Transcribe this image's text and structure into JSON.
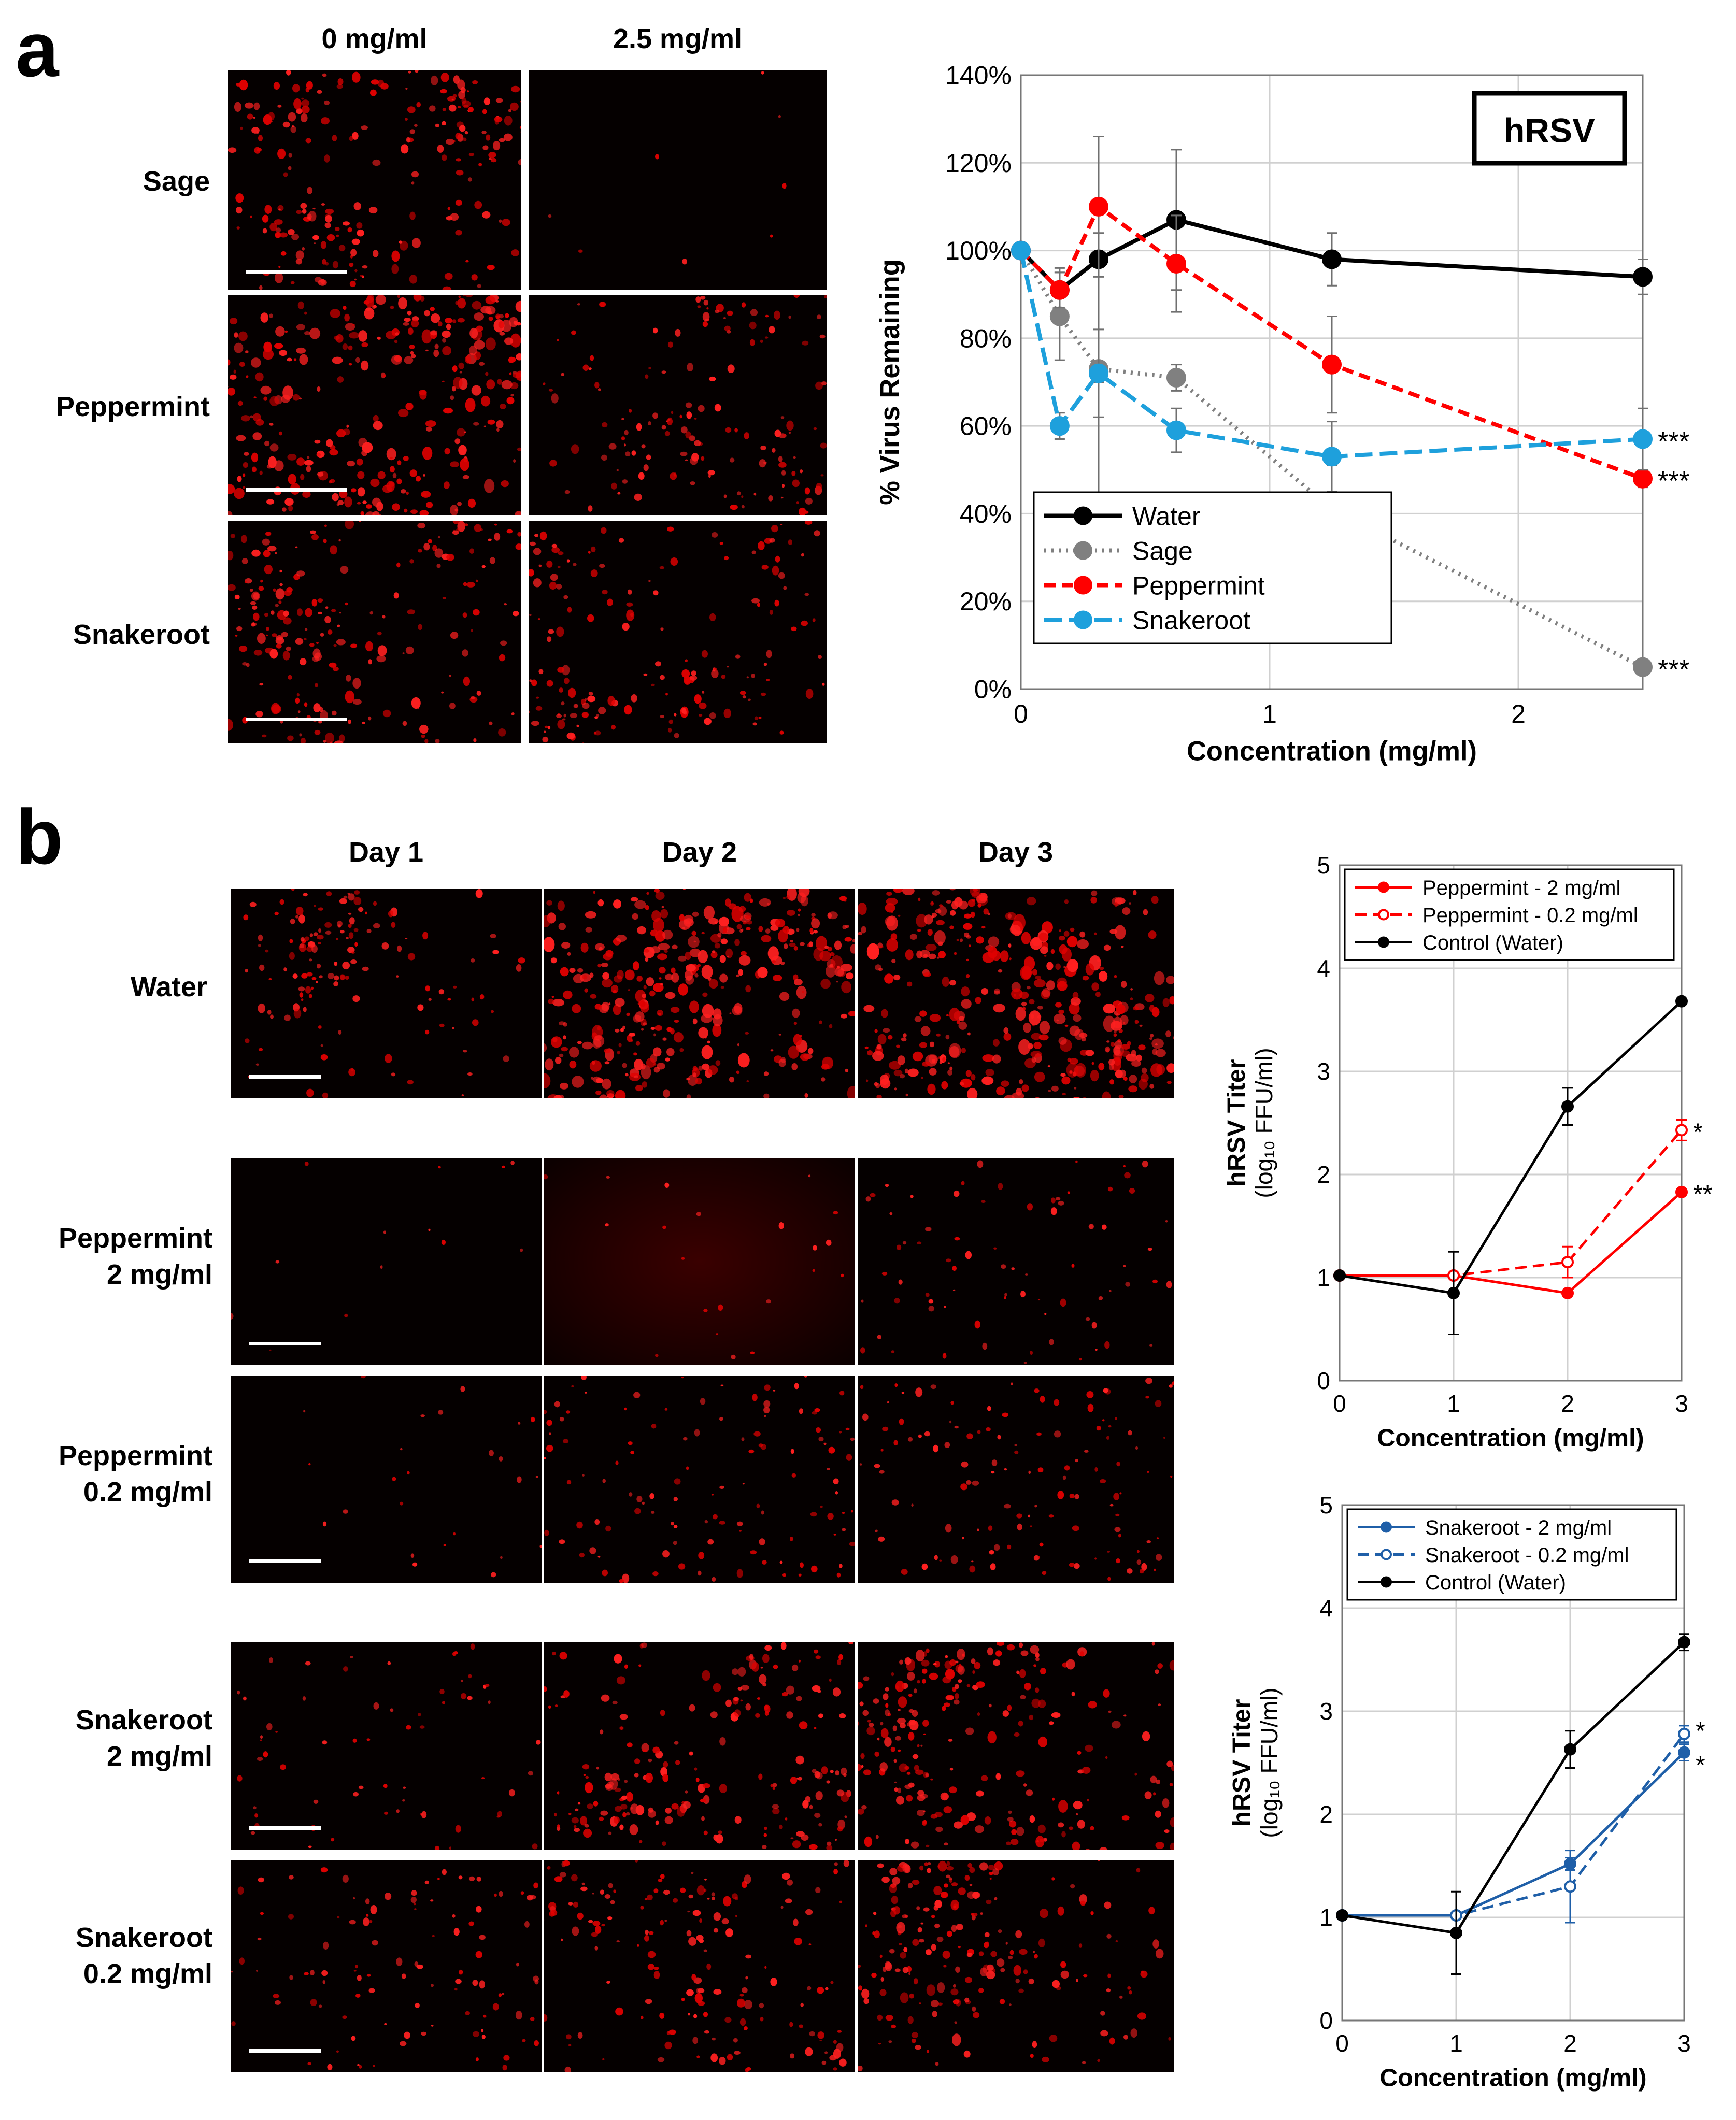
{
  "panel_a": {
    "letter": "a",
    "columns": [
      "0 mg/ml",
      "2.5 mg/ml"
    ],
    "rows": [
      "Sage",
      "Peppermint",
      "Snakeroot"
    ],
    "images": [
      {
        "row": "Sage",
        "col": "0 mg/ml",
        "intensity": 0.55,
        "seed": 11
      },
      {
        "row": "Sage",
        "col": "2.5 mg/ml",
        "intensity": 0.02,
        "seed": 12
      },
      {
        "row": "Peppermint",
        "col": "0 mg/ml",
        "intensity": 0.8,
        "seed": 13
      },
      {
        "row": "Peppermint",
        "col": "2.5 mg/ml",
        "intensity": 0.4,
        "seed": 14
      },
      {
        "row": "Snakeroot",
        "col": "0 mg/ml",
        "intensity": 0.6,
        "seed": 15
      },
      {
        "row": "Snakeroot",
        "col": "2.5 mg/ml",
        "intensity": 0.45,
        "seed": 16
      }
    ]
  },
  "panel_b": {
    "letter": "b",
    "columns": [
      "Day 1",
      "Day 2",
      "Day 3"
    ],
    "rows": [
      "Water",
      "Peppermint\n2 mg/ml",
      "Peppermint\n0.2 mg/ml",
      "Snakeroot\n2 mg/ml",
      "Snakeroot\n0.2 mg/ml"
    ],
    "images": [
      [
        0.35,
        0.95,
        1.0
      ],
      [
        0.03,
        0.05,
        0.18
      ],
      [
        0.06,
        0.28,
        0.3
      ],
      [
        0.15,
        0.5,
        0.6
      ],
      [
        0.25,
        0.45,
        0.55
      ]
    ]
  },
  "chart_data": [
    {
      "type": "line",
      "badge": "hRSV",
      "xlabel": "Concentration (mg/ml)",
      "ylabel": "% Virus Remaining",
      "xlim": [
        0,
        2.5
      ],
      "ylim": [
        0,
        140
      ],
      "xticks": [
        "0",
        "1",
        "2"
      ],
      "yticks": [
        "0%",
        "20%",
        "40%",
        "60%",
        "80%",
        "100%",
        "120%",
        "140%"
      ],
      "grid": true,
      "legend": "bottom-left",
      "series": [
        {
          "name": "Water",
          "color": "#000000",
          "style": "solid",
          "x": [
            0,
            0.156,
            0.3125,
            0.625,
            1.25,
            2.5
          ],
          "y": [
            100,
            91,
            98,
            107,
            98,
            94
          ],
          "err": [
            0,
            5,
            28,
            16,
            6,
            4
          ],
          "sig": ""
        },
        {
          "name": "Sage",
          "color": "#808080",
          "style": "dotted",
          "x": [
            0,
            0.156,
            0.3125,
            0.625,
            1.25,
            2.5
          ],
          "y": [
            100,
            85,
            73,
            71,
            41,
            5
          ],
          "err": [
            0,
            10,
            31,
            3,
            10,
            1
          ],
          "sig": "***"
        },
        {
          "name": "Peppermint",
          "color": "#ff0000",
          "style": "dashed",
          "x": [
            0,
            0.156,
            0.3125,
            0.625,
            1.25,
            2.5
          ],
          "y": [
            100,
            91,
            110,
            97,
            74,
            48
          ],
          "err": [
            0,
            4,
            16,
            11,
            11,
            2
          ],
          "sig": "***"
        },
        {
          "name": "Snakeroot",
          "color": "#1ea0dc",
          "style": "longdash",
          "x": [
            0,
            0.156,
            0.3125,
            0.625,
            1.25,
            2.5
          ],
          "y": [
            100,
            60,
            72,
            59,
            53,
            57
          ],
          "err": [
            0,
            3,
            10,
            5,
            8,
            7
          ],
          "sig": "***"
        }
      ]
    },
    {
      "type": "line",
      "xlabel": "Concentration (mg/ml)",
      "ylabel": "hRSV Titer",
      "ylabel2": "(log₁₀ FFU/ml)",
      "xlim": [
        0,
        3
      ],
      "ylim": [
        0,
        5
      ],
      "xticks": [
        "0",
        "1",
        "2",
        "3"
      ],
      "yticks": [
        "0",
        "1",
        "2",
        "3",
        "4",
        "5"
      ],
      "grid": true,
      "legend": "top",
      "series": [
        {
          "name": "Peppermint - 2 mg/ml",
          "color": "#ff0000",
          "style": "solid",
          "open": false,
          "x": [
            0,
            1,
            2,
            3
          ],
          "y": [
            1.02,
            1.02,
            0.85,
            1.83
          ],
          "err": [
            0,
            0,
            0,
            0
          ],
          "sig": "**"
        },
        {
          "name": "Peppermint - 0.2 mg/ml",
          "color": "#ff0000",
          "style": "dashed",
          "open": true,
          "x": [
            0,
            1,
            2,
            3
          ],
          "y": [
            1.02,
            1.02,
            1.15,
            2.43
          ],
          "err": [
            0,
            0,
            0.15,
            0.1
          ],
          "sig": "*"
        },
        {
          "name": "Control (Water)",
          "color": "#000000",
          "style": "solid",
          "open": false,
          "x": [
            0,
            1,
            2,
            3
          ],
          "y": [
            1.02,
            0.85,
            2.66,
            3.68
          ],
          "err": [
            0,
            0.4,
            0.18,
            0
          ],
          "sig": ""
        }
      ]
    },
    {
      "type": "line",
      "xlabel": "Concentration (mg/ml)",
      "ylabel": "hRSV Titer",
      "ylabel2": "(log₁₀ FFU/ml)",
      "xlim": [
        0,
        3
      ],
      "ylim": [
        0,
        5
      ],
      "xticks": [
        "0",
        "1",
        "2",
        "3"
      ],
      "yticks": [
        "0",
        "1",
        "2",
        "3",
        "4",
        "5"
      ],
      "grid": true,
      "legend": "top",
      "series": [
        {
          "name": "Snakeroot - 2 mg/ml",
          "color": "#1f5fa8",
          "style": "solid",
          "open": false,
          "x": [
            0,
            1,
            2,
            3
          ],
          "y": [
            1.02,
            1.02,
            1.52,
            2.6
          ],
          "err": [
            0,
            0,
            0.06,
            0.08
          ],
          "sig": "*"
        },
        {
          "name": "Snakeroot - 0.2 mg/ml",
          "color": "#1f5fa8",
          "style": "dashed",
          "open": true,
          "x": [
            0,
            1,
            2,
            3
          ],
          "y": [
            1.02,
            1.02,
            1.3,
            2.78
          ],
          "err": [
            0,
            0,
            0.35,
            0.08
          ],
          "sig": "*"
        },
        {
          "name": "Control (Water)",
          "color": "#000000",
          "style": "solid",
          "open": false,
          "x": [
            0,
            1,
            2,
            3
          ],
          "y": [
            1.02,
            0.85,
            2.63,
            3.67
          ],
          "err": [
            0,
            0.4,
            0.18,
            0.08
          ],
          "sig": ""
        }
      ]
    }
  ]
}
